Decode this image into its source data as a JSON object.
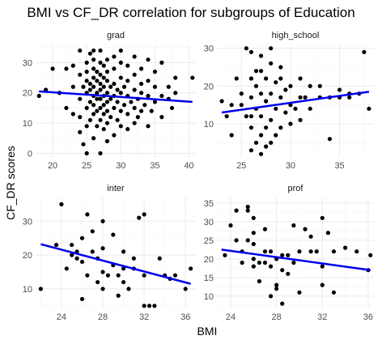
{
  "chart_data": {
    "type": "scatter",
    "title": "BMI vs CF_DR correlation for subgroups of Education",
    "xlabel": "BMI",
    "ylabel": "CF_DR scores",
    "grid": true,
    "trend_color": "#0000EE",
    "point_color": "#000000",
    "panels": [
      {
        "name": "grad",
        "xlim": [
          17.5,
          41
        ],
        "ylim": [
          -1.5,
          36
        ],
        "xticks": [
          20,
          25,
          30,
          35,
          40
        ],
        "yticks": [
          0,
          10,
          20,
          30
        ],
        "fit": {
          "x": [
            18,
            40.5
          ],
          "y": [
            20.5,
            17
          ]
        },
        "points": [
          [
            18,
            19
          ],
          [
            19,
            21
          ],
          [
            20,
            28
          ],
          [
            21,
            20
          ],
          [
            22,
            28
          ],
          [
            22,
            15
          ],
          [
            23,
            13
          ],
          [
            23,
            22
          ],
          [
            23,
            29
          ],
          [
            24,
            7
          ],
          [
            24,
            12
          ],
          [
            24,
            18
          ],
          [
            24,
            26
          ],
          [
            24,
            34
          ],
          [
            24.5,
            3
          ],
          [
            24.5,
            22
          ],
          [
            25,
            0
          ],
          [
            25,
            9
          ],
          [
            25,
            15
          ],
          [
            25,
            20
          ],
          [
            25,
            24
          ],
          [
            25,
            27
          ],
          [
            25,
            30
          ],
          [
            25.5,
            11
          ],
          [
            25.5,
            17
          ],
          [
            25.5,
            21
          ],
          [
            25.5,
            23
          ],
          [
            25.5,
            33
          ],
          [
            26,
            5
          ],
          [
            26,
            13
          ],
          [
            26,
            16
          ],
          [
            26,
            19
          ],
          [
            26,
            22
          ],
          [
            26,
            25
          ],
          [
            26,
            28
          ],
          [
            26,
            31
          ],
          [
            26,
            34
          ],
          [
            26.5,
            9
          ],
          [
            26.5,
            14
          ],
          [
            26.5,
            18
          ],
          [
            26.5,
            20
          ],
          [
            26.5,
            24
          ],
          [
            26.5,
            27
          ],
          [
            27,
            0
          ],
          [
            27,
            11
          ],
          [
            27,
            15
          ],
          [
            27,
            18
          ],
          [
            27,
            21
          ],
          [
            27,
            23
          ],
          [
            27,
            26
          ],
          [
            27,
            30
          ],
          [
            27,
            34
          ],
          [
            27.5,
            8
          ],
          [
            27.5,
            13
          ],
          [
            27.5,
            16
          ],
          [
            27.5,
            19
          ],
          [
            27.5,
            22
          ],
          [
            27.5,
            25
          ],
          [
            27.5,
            29
          ],
          [
            28,
            4
          ],
          [
            28,
            10
          ],
          [
            28,
            14
          ],
          [
            28,
            17
          ],
          [
            28,
            20
          ],
          [
            28,
            24
          ],
          [
            28,
            27
          ],
          [
            28,
            31
          ],
          [
            28.5,
            12
          ],
          [
            28.5,
            18
          ],
          [
            28.5,
            22
          ],
          [
            29,
            6
          ],
          [
            29,
            15
          ],
          [
            29,
            19
          ],
          [
            29,
            23
          ],
          [
            29,
            28
          ],
          [
            29,
            32
          ],
          [
            29.5,
            11
          ],
          [
            29.5,
            17
          ],
          [
            29.5,
            21
          ],
          [
            30,
            9
          ],
          [
            30,
            14
          ],
          [
            30,
            20
          ],
          [
            30,
            25
          ],
          [
            30,
            30
          ],
          [
            30,
            34
          ],
          [
            30.5,
            16
          ],
          [
            30.5,
            22
          ],
          [
            31,
            8
          ],
          [
            31,
            13
          ],
          [
            31,
            19
          ],
          [
            31,
            24
          ],
          [
            31,
            29
          ],
          [
            31.5,
            17
          ],
          [
            32,
            10
          ],
          [
            32,
            15
          ],
          [
            32,
            21
          ],
          [
            32,
            26
          ],
          [
            32,
            32
          ],
          [
            32.5,
            12
          ],
          [
            32.5,
            18
          ],
          [
            33,
            14
          ],
          [
            33,
            20
          ],
          [
            33,
            23
          ],
          [
            33,
            28
          ],
          [
            33.5,
            16
          ],
          [
            34,
            9
          ],
          [
            34,
            19
          ],
          [
            34,
            24
          ],
          [
            34,
            31
          ],
          [
            34.5,
            14
          ],
          [
            35,
            17
          ],
          [
            35,
            22
          ],
          [
            35,
            27
          ],
          [
            36,
            12
          ],
          [
            36,
            19
          ],
          [
            36,
            30
          ],
          [
            37,
            18
          ],
          [
            37,
            22
          ],
          [
            37.5,
            15
          ],
          [
            38,
            20
          ],
          [
            38,
            25
          ],
          [
            40.5,
            25
          ]
        ]
      },
      {
        "name": "high_school",
        "xlim": [
          22.5,
          38.5
        ],
        "ylim": [
          1,
          31
        ],
        "xticks": [
          25,
          30,
          35
        ],
        "yticks": [
          10,
          20,
          30
        ],
        "fit": {
          "x": [
            23,
            38
          ],
          "y": [
            13,
            18.5
          ]
        },
        "points": [
          [
            23,
            16
          ],
          [
            23.5,
            12
          ],
          [
            24,
            7
          ],
          [
            24,
            15
          ],
          [
            24.5,
            22
          ],
          [
            25,
            15
          ],
          [
            25,
            18
          ],
          [
            25.5,
            12
          ],
          [
            25.5,
            30
          ],
          [
            26,
            3
          ],
          [
            26,
            9
          ],
          [
            26,
            12
          ],
          [
            26,
            17
          ],
          [
            26,
            22
          ],
          [
            26,
            29
          ],
          [
            26.5,
            5
          ],
          [
            26.5,
            14
          ],
          [
            26.5,
            20
          ],
          [
            26.5,
            24
          ],
          [
            27,
            2
          ],
          [
            27,
            7
          ],
          [
            27,
            12
          ],
          [
            27,
            18
          ],
          [
            27,
            24
          ],
          [
            27,
            28
          ],
          [
            27.5,
            4
          ],
          [
            27.5,
            9
          ],
          [
            27.5,
            16
          ],
          [
            27.5,
            22
          ],
          [
            28,
            5
          ],
          [
            28,
            11
          ],
          [
            28,
            18
          ],
          [
            28,
            26
          ],
          [
            28,
            30
          ],
          [
            28.5,
            7
          ],
          [
            28.5,
            14
          ],
          [
            28.5,
            21
          ],
          [
            29,
            9
          ],
          [
            29,
            17
          ],
          [
            29,
            22
          ],
          [
            29,
            25
          ],
          [
            29.5,
            13
          ],
          [
            29.5,
            19
          ],
          [
            30,
            10
          ],
          [
            30,
            15
          ],
          [
            30,
            20
          ],
          [
            30.5,
            14
          ],
          [
            31,
            11
          ],
          [
            31,
            17
          ],
          [
            31,
            22
          ],
          [
            31.5,
            17
          ],
          [
            32,
            14
          ],
          [
            32,
            20
          ],
          [
            33,
            17
          ],
          [
            33,
            20
          ],
          [
            34,
            6
          ],
          [
            34,
            17
          ],
          [
            35,
            17
          ],
          [
            35,
            19
          ],
          [
            36,
            17
          ],
          [
            36,
            18
          ],
          [
            37,
            18
          ],
          [
            37.5,
            29
          ],
          [
            38,
            14
          ]
        ]
      },
      {
        "name": "inter",
        "xlim": [
          21.5,
          37
        ],
        "ylim": [
          4,
          37
        ],
        "xticks": [
          24,
          28,
          32,
          36
        ],
        "yticks": [
          10,
          20,
          30
        ],
        "fit": {
          "x": [
            22,
            36.5
          ],
          "y": [
            23.2,
            11.5
          ]
        },
        "points": [
          [
            22,
            10
          ],
          [
            23.5,
            23
          ],
          [
            24,
            35
          ],
          [
            24.5,
            16
          ],
          [
            25,
            20
          ],
          [
            25,
            23
          ],
          [
            25.5,
            19
          ],
          [
            25.5,
            21
          ],
          [
            26,
            7
          ],
          [
            26,
            18
          ],
          [
            26,
            25
          ],
          [
            26.5,
            14
          ],
          [
            26.5,
            32
          ],
          [
            27,
            21
          ],
          [
            27,
            27
          ],
          [
            27.5,
            12
          ],
          [
            27.5,
            19
          ],
          [
            28,
            10
          ],
          [
            28,
            15
          ],
          [
            28,
            22
          ],
          [
            28,
            30
          ],
          [
            28.5,
            14
          ],
          [
            29,
            17
          ],
          [
            29,
            26
          ],
          [
            29.5,
            8
          ],
          [
            29.5,
            14
          ],
          [
            30,
            12
          ],
          [
            30,
            16
          ],
          [
            30,
            21
          ],
          [
            30.5,
            10
          ],
          [
            31,
            16
          ],
          [
            31,
            19
          ],
          [
            31.5,
            31
          ],
          [
            32,
            5
          ],
          [
            32,
            14
          ],
          [
            32,
            32
          ],
          [
            32.5,
            5
          ],
          [
            33,
            5
          ],
          [
            33.5,
            19
          ],
          [
            34,
            14
          ],
          [
            34.5,
            13
          ],
          [
            35,
            14
          ],
          [
            36,
            10
          ],
          [
            36.5,
            16
          ]
        ]
      },
      {
        "name": "prof",
        "xlim": [
          22.8,
          36.5
        ],
        "ylim": [
          6.5,
          36.5
        ],
        "xticks": [
          24,
          28,
          32,
          36
        ],
        "yticks": [
          10,
          15,
          20,
          25,
          30,
          35
        ],
        "fit": {
          "x": [
            23.2,
            36.2
          ],
          "y": [
            22.5,
            17
          ]
        },
        "points": [
          [
            23.5,
            21
          ],
          [
            24,
            29
          ],
          [
            24.5,
            25
          ],
          [
            24.5,
            33
          ],
          [
            25,
            19
          ],
          [
            25,
            22
          ],
          [
            25.5,
            25
          ],
          [
            25.5,
            34
          ],
          [
            25.5,
            33
          ],
          [
            26,
            18
          ],
          [
            26,
            20
          ],
          [
            26,
            24
          ],
          [
            26,
            27
          ],
          [
            26,
            31
          ],
          [
            26.5,
            14
          ],
          [
            26.5,
            19
          ],
          [
            27,
            19
          ],
          [
            27,
            22
          ],
          [
            27,
            28
          ],
          [
            27.5,
            10
          ],
          [
            27.5,
            18
          ],
          [
            27.5,
            22
          ],
          [
            28,
            12
          ],
          [
            28,
            13
          ],
          [
            28,
            20
          ],
          [
            28.5,
            8
          ],
          [
            28.5,
            21
          ],
          [
            28.5,
            17
          ],
          [
            29,
            16
          ],
          [
            29,
            21
          ],
          [
            29.5,
            19
          ],
          [
            29.5,
            29
          ],
          [
            30,
            11
          ],
          [
            30,
            22
          ],
          [
            30.5,
            28
          ],
          [
            31,
            22
          ],
          [
            31,
            26
          ],
          [
            31.5,
            22
          ],
          [
            32,
            13
          ],
          [
            32,
            18
          ],
          [
            32,
            31
          ],
          [
            32.5,
            27
          ],
          [
            33,
            11
          ],
          [
            33,
            22
          ],
          [
            34,
            23
          ],
          [
            35,
            22
          ],
          [
            36,
            17
          ],
          [
            36.2,
            21
          ]
        ]
      }
    ]
  }
}
